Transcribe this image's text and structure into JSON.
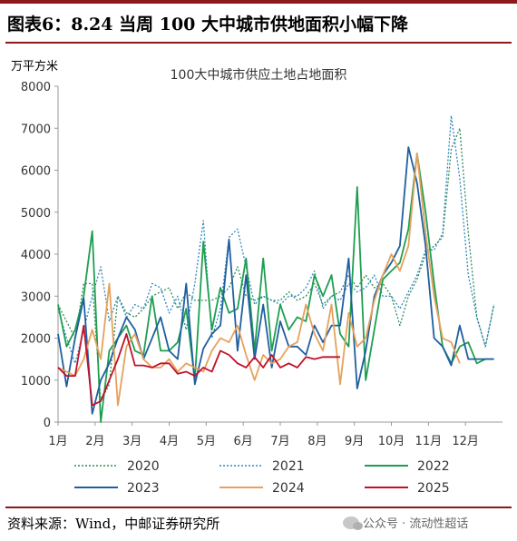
{
  "header": {
    "title": "图表6：8.24 当周 100 大中城市供地面积小幅下降"
  },
  "footer": {
    "source": "资料来源：Wind，中邮证券研究所",
    "watermark": "公众号 · 流动性超话"
  },
  "chart_data": {
    "type": "line",
    "title": "100大中城市供应土地占地面积",
    "ylabel": "万平方米",
    "ylim": [
      0,
      8000
    ],
    "yticks": [
      "0",
      "1000",
      "2000",
      "3000",
      "4000",
      "5000",
      "6000",
      "7000",
      "8000"
    ],
    "xlim": [
      0,
      52
    ],
    "xticks": [
      "1月",
      "2月",
      "3月",
      "4月",
      "5月",
      "6月",
      "7月",
      "8月",
      "9月",
      "10月",
      "11月",
      "12月"
    ],
    "grid": false,
    "legend_position": "bottom",
    "series": [
      {
        "name": "2020",
        "color": "#2e8b57",
        "style": "dotted",
        "x": [
          0,
          1,
          2,
          3,
          4,
          5,
          6,
          7,
          8,
          9,
          10,
          11,
          12,
          13,
          14,
          15,
          16,
          17,
          18,
          19,
          20,
          21,
          22,
          23,
          24,
          25,
          26,
          27,
          28,
          29,
          30,
          31,
          32,
          33,
          34,
          35,
          36,
          37,
          38,
          39,
          40,
          41,
          42,
          43,
          44,
          45,
          46,
          47,
          48,
          49,
          50,
          51
        ],
        "values": [
          2800,
          2400,
          2000,
          3300,
          3300,
          500,
          900,
          3000,
          2600,
          2500,
          2700,
          3000,
          3100,
          3200,
          2700,
          3100,
          2900,
          2900,
          2900,
          3000,
          3200,
          3700,
          3000,
          2900,
          3000,
          2900,
          2900,
          3100,
          2900,
          3000,
          3300,
          2800,
          3000,
          3100,
          3500,
          3200,
          3500,
          3200,
          3300,
          3000,
          2300,
          3000,
          3400,
          4000,
          4200,
          4400,
          6500,
          7000,
          4500,
          2500,
          1800,
          2800
        ]
      },
      {
        "name": "2021",
        "color": "#2e86c1",
        "style": "dotted",
        "x": [
          0,
          1,
          2,
          3,
          4,
          5,
          6,
          7,
          8,
          9,
          10,
          11,
          12,
          13,
          14,
          15,
          16,
          17,
          18,
          19,
          20,
          21,
          22,
          23,
          24,
          25,
          26,
          27,
          28,
          29,
          30,
          31,
          32,
          33,
          34,
          35,
          36,
          37,
          38,
          39,
          40,
          41,
          42,
          43,
          44,
          45,
          46,
          47,
          48,
          49,
          50,
          51
        ],
        "values": [
          2700,
          2000,
          1400,
          2200,
          3000,
          3700,
          2400,
          3000,
          2500,
          2800,
          2700,
          3300,
          3200,
          2600,
          3000,
          2200,
          3300,
          4800,
          2000,
          2700,
          4400,
          4600,
          3700,
          2800,
          3000,
          2900,
          2800,
          3000,
          3000,
          3200,
          3600,
          2700,
          3000,
          2900,
          3300,
          3100,
          3200,
          3500,
          3000,
          3000,
          2700,
          3100,
          3500,
          4100,
          4100,
          4500,
          7300,
          5800,
          3500,
          2500,
          1800,
          2800
        ]
      },
      {
        "name": "2022",
        "color": "#1e9e50",
        "style": "solid",
        "x": [
          0,
          1,
          2,
          3,
          4,
          5,
          6,
          7,
          8,
          9,
          10,
          11,
          12,
          13,
          14,
          15,
          16,
          17,
          18,
          19,
          20,
          21,
          22,
          23,
          24,
          25,
          26,
          27,
          28,
          29,
          30,
          31,
          32,
          33,
          34,
          35,
          36,
          37,
          38,
          39,
          40,
          41,
          42,
          43,
          44,
          45,
          46,
          47,
          48,
          49,
          50,
          51
        ],
        "values": [
          2800,
          1800,
          2200,
          3000,
          4550,
          0,
          1700,
          2000,
          2300,
          1700,
          1600,
          3000,
          1700,
          1700,
          1900,
          2700,
          1000,
          4300,
          2200,
          3200,
          2600,
          2700,
          3900,
          1700,
          3900,
          1700,
          2800,
          2200,
          2500,
          2400,
          3500,
          3000,
          3500,
          2100,
          1800,
          5600,
          1000,
          2200,
          3400,
          3600,
          3800,
          4600,
          6400,
          5000,
          3300,
          1800,
          1400,
          1800,
          1900,
          1400,
          1500,
          1500
        ]
      },
      {
        "name": "2023",
        "color": "#1f5fa0",
        "style": "solid",
        "x": [
          0,
          1,
          2,
          3,
          4,
          5,
          6,
          7,
          8,
          9,
          10,
          11,
          12,
          13,
          14,
          15,
          16,
          17,
          18,
          19,
          20,
          21,
          22,
          23,
          24,
          25,
          26,
          27,
          28,
          29,
          30,
          31,
          32,
          33,
          34,
          35,
          36,
          37,
          38,
          39,
          40,
          41,
          42,
          43,
          44,
          45,
          46,
          47,
          48,
          49,
          50,
          51
        ],
        "values": [
          2100,
          850,
          2000,
          2950,
          200,
          1000,
          1400,
          2000,
          2500,
          2200,
          1500,
          2000,
          2500,
          1700,
          1500,
          3300,
          900,
          1750,
          2100,
          2300,
          4350,
          1700,
          3500,
          1500,
          2800,
          1300,
          2400,
          1800,
          1800,
          1600,
          2300,
          1900,
          2300,
          2300,
          3900,
          800,
          1700,
          3000,
          3500,
          3800,
          4200,
          6550,
          5700,
          4200,
          2000,
          1800,
          1350,
          2300,
          1500,
          1500,
          1500,
          1500
        ]
      },
      {
        "name": "2024",
        "color": "#e6a15c",
        "style": "solid",
        "x": [
          0,
          1,
          2,
          3,
          4,
          5,
          6,
          7,
          8,
          9,
          10,
          11,
          12,
          13,
          14,
          15,
          16,
          17,
          18,
          19,
          20,
          21,
          22,
          23,
          24,
          25,
          26,
          27,
          28,
          29,
          30,
          31,
          32,
          33,
          34,
          35,
          36,
          37,
          38,
          39,
          40,
          41,
          42,
          43,
          44,
          45,
          46,
          47
        ],
        "values": [
          1300,
          1200,
          1100,
          1500,
          2200,
          1500,
          3300,
          400,
          1800,
          2100,
          1500,
          1300,
          1300,
          1500,
          1200,
          1400,
          1300,
          1200,
          1700,
          2000,
          1900,
          2300,
          1600,
          1000,
          1600,
          1400,
          1500,
          1800,
          1900,
          2800,
          2100,
          1700,
          2800,
          900,
          2600,
          1800,
          2000,
          2900,
          3500,
          4000,
          3600,
          4200,
          6400,
          4500,
          3000,
          2000,
          1900,
          1400
        ]
      },
      {
        "name": "2025",
        "color": "#c0112b",
        "style": "solid",
        "x": [
          0,
          1,
          2,
          3,
          4,
          5,
          6,
          7,
          8,
          9,
          10,
          11,
          12,
          13,
          14,
          15,
          16,
          17,
          18,
          19,
          20,
          21,
          22,
          23,
          24,
          25,
          26,
          27,
          28,
          29,
          30,
          31,
          32,
          33
        ],
        "values": [
          1300,
          1100,
          1100,
          2300,
          400,
          500,
          1000,
          1500,
          2100,
          1350,
          1350,
          1300,
          1400,
          1400,
          1150,
          1200,
          1100,
          1300,
          1200,
          1700,
          1600,
          1400,
          1300,
          1550,
          1300,
          1600,
          1300,
          1400,
          1300,
          1550,
          1500,
          1550,
          1550,
          1550
        ]
      }
    ]
  }
}
